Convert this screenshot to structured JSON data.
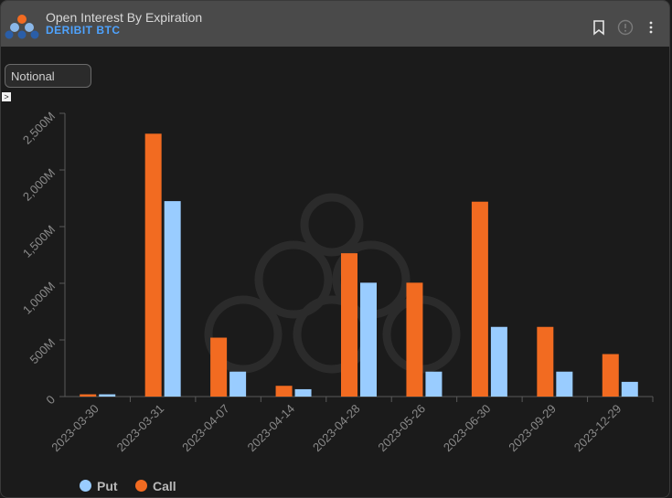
{
  "header": {
    "title": "Open Interest By Expiration",
    "subtitle": "DERIBIT BTC"
  },
  "controls": {
    "metric_select": "Notional",
    "expander_glyph": ">"
  },
  "icons": {
    "bookmark": "bookmark-icon",
    "info": "info-icon",
    "menu": "more-vertical-icon"
  },
  "colors": {
    "put": "#99ccff",
    "call": "#f26b21",
    "header_bg": "#4a4a4a",
    "subtitle": "#4ea3ff"
  },
  "legend": [
    {
      "label": "Put",
      "color": "#99ccff"
    },
    {
      "label": "Call",
      "color": "#f26b21"
    }
  ],
  "chart_data": {
    "type": "bar",
    "categories": [
      "2023-03-30",
      "2023-03-31",
      "2023-04-07",
      "2023-04-14",
      "2023-04-28",
      "2023-05-26",
      "2023-06-30",
      "2023-09-29",
      "2023-12-29"
    ],
    "series": [
      {
        "name": "Call",
        "color": "#f26b21",
        "values": [
          20,
          2320,
          520,
          95,
          1265,
          1005,
          1720,
          615,
          375
        ]
      },
      {
        "name": "Put",
        "color": "#99ccff",
        "values": [
          20,
          1725,
          220,
          65,
          1005,
          220,
          615,
          220,
          130
        ]
      }
    ],
    "yticks": [
      0,
      500,
      1000,
      1500,
      2000,
      2500
    ],
    "ytick_labels": [
      "0",
      "500M",
      "1,000M",
      "1,500M",
      "2,000M",
      "2,500M"
    ],
    "ylim": [
      0,
      2500
    ],
    "xlabel": "",
    "ylabel": "",
    "legend_position": "bottom-left",
    "grid": false
  }
}
